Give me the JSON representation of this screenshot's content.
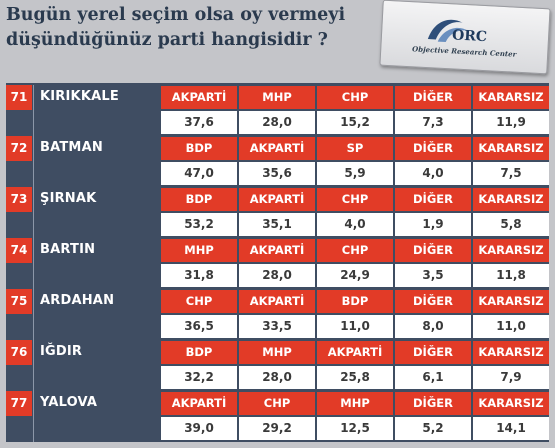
{
  "title": {
    "line1": "Bugün yerel seçim olsa oy vermeyi",
    "line2": "düşündüğünüz  parti hangisidir ?"
  },
  "logo": {
    "mark": "ORC",
    "text": "Objective Research Center"
  },
  "colors": {
    "header_red": "#e23b27",
    "table_bg": "#3f4d62",
    "value_bg": "#ffffff"
  },
  "chart_data": {
    "type": "table",
    "rows": [
      {
        "no": "71",
        "city": "KIRIKKALE",
        "parties": [
          "AKPARTİ",
          "MHP",
          "CHP",
          "DİĞER",
          "KARARSIZ"
        ],
        "values": [
          "37,6",
          "28,0",
          "15,2",
          "7,3",
          "11,9"
        ]
      },
      {
        "no": "72",
        "city": "BATMAN",
        "parties": [
          "BDP",
          "AKPARTİ",
          "SP",
          "DİĞER",
          "KARARSIZ"
        ],
        "values": [
          "47,0",
          "35,6",
          "5,9",
          "4,0",
          "7,5"
        ]
      },
      {
        "no": "73",
        "city": "ŞIRNAK",
        "parties": [
          "BDP",
          "AKPARTİ",
          "CHP",
          "DİĞER",
          "KARARSIZ"
        ],
        "values": [
          "53,2",
          "35,1",
          "4,0",
          "1,9",
          "5,8"
        ]
      },
      {
        "no": "74",
        "city": "BARTIN",
        "parties": [
          "MHP",
          "AKPARTİ",
          "CHP",
          "DİĞER",
          "KARARSIZ"
        ],
        "values": [
          "31,8",
          "28,0",
          "24,9",
          "3,5",
          "11,8"
        ]
      },
      {
        "no": "75",
        "city": "ARDAHAN",
        "parties": [
          "CHP",
          "AKPARTİ",
          "BDP",
          "DİĞER",
          "KARARSIZ"
        ],
        "values": [
          "36,5",
          "33,5",
          "11,0",
          "8,0",
          "11,0"
        ]
      },
      {
        "no": "76",
        "city": "IĞDIR",
        "parties": [
          "BDP",
          "MHP",
          "AKPARTİ",
          "DİĞER",
          "KARARSIZ"
        ],
        "values": [
          "32,2",
          "28,0",
          "25,8",
          "6,1",
          "7,9"
        ]
      },
      {
        "no": "77",
        "city": "YALOVA",
        "parties": [
          "AKPARTİ",
          "CHP",
          "MHP",
          "DİĞER",
          "KARARSIZ"
        ],
        "values": [
          "39,0",
          "29,2",
          "12,5",
          "5,2",
          "14,1"
        ]
      }
    ]
  }
}
